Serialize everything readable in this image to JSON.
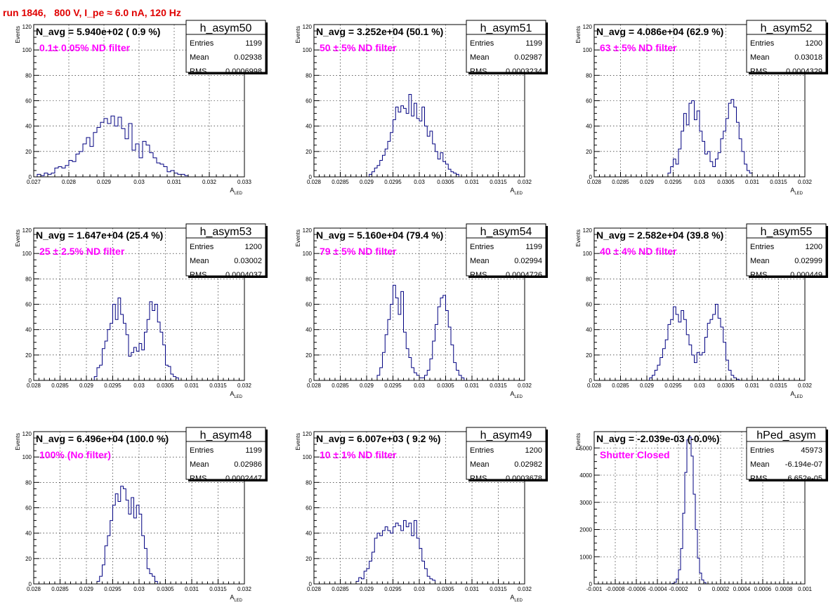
{
  "title": "run 1846,   800 V, I_pe ≈ 6.0 nA, 120 Hz",
  "colors": {
    "title": "#e00000",
    "annotation": "#ff00ff",
    "histogram": "#000080",
    "grid": "#000000"
  },
  "chart_data": [
    {
      "type": "histogram",
      "name": "h_asym50",
      "navg_label": "N_avg = 5.940e+02 ( 0.9 %)",
      "annotation": "0.1± 0.05% ND filter",
      "stats": {
        "Entries": "1199",
        "Mean": "0.02938",
        "RMS": "0.0006998"
      },
      "ylabel": "Events",
      "xlabel": "A_LED",
      "xlim": [
        0.027,
        0.033
      ],
      "ylim": [
        0,
        120
      ],
      "xticks": [
        0.027,
        0.028,
        0.029,
        0.03,
        0.031,
        0.032,
        0.033
      ],
      "xtick_labels": [
        "0.027",
        "0.028",
        "0.029",
        "0.03",
        "0.031",
        "0.032",
        "0.033"
      ],
      "yticks": [
        0,
        20,
        40,
        60,
        80,
        100,
        120
      ],
      "bin_start": 0.0271,
      "bin_width": 0.0001,
      "counts": [
        2,
        1,
        3,
        2,
        3,
        7,
        8,
        7,
        9,
        13,
        12,
        18,
        20,
        26,
        31,
        24,
        35,
        39,
        43,
        46,
        42,
        48,
        40,
        47,
        38,
        30,
        42,
        21,
        26,
        15,
        28,
        25,
        19,
        15,
        11,
        10,
        8,
        4,
        5,
        3,
        2,
        2,
        1
      ]
    },
    {
      "type": "histogram",
      "name": "h_asym51",
      "navg_label": "N_avg = 3.252e+04 (50.1 %)",
      "annotation": "50 ± 5% ND filter",
      "stats": {
        "Entries": "1199",
        "Mean": "0.02987",
        "RMS": "0.0003234"
      },
      "ylabel": "Events",
      "xlabel": "A_LED",
      "xlim": [
        0.028,
        0.032
      ],
      "ylim": [
        0,
        120
      ],
      "xticks": [
        0.028,
        0.0285,
        0.029,
        0.0295,
        0.03,
        0.0305,
        0.031,
        0.0315,
        0.032
      ],
      "xtick_labels": [
        "0.028",
        "0.0285",
        "0.029",
        "0.0295",
        "0.03",
        "0.0305",
        "0.031",
        "0.0315",
        "0.032"
      ],
      "yticks": [
        0,
        20,
        40,
        60,
        80,
        100,
        120
      ],
      "bin_start": 0.02905,
      "bin_width": 5e-05,
      "counts": [
        2,
        4,
        7,
        9,
        13,
        17,
        22,
        28,
        35,
        45,
        55,
        51,
        56,
        54,
        50,
        65,
        48,
        58,
        46,
        44,
        55,
        40,
        32,
        36,
        26,
        20,
        14,
        19,
        12,
        10,
        6,
        4,
        3,
        2
      ]
    },
    {
      "type": "histogram",
      "name": "h_asym52",
      "navg_label": "N_avg = 4.086e+04 (62.9 %)",
      "annotation": "63 ± 5% ND filter",
      "stats": {
        "Entries": "1200",
        "Mean": "0.03018",
        "RMS": "0.0004329"
      },
      "ylabel": "Events",
      "xlabel": "A_LED",
      "xlim": [
        0.028,
        0.032
      ],
      "ylim": [
        0,
        120
      ],
      "xticks": [
        0.028,
        0.0285,
        0.029,
        0.0295,
        0.03,
        0.0305,
        0.031,
        0.0315,
        0.032
      ],
      "xtick_labels": [
        "0.028",
        "0.0285",
        "0.029",
        "0.0295",
        "0.03",
        "0.0305",
        "0.031",
        "0.0315",
        "0.032"
      ],
      "yticks": [
        0,
        20,
        40,
        60,
        80,
        100,
        120
      ],
      "bin_start": 0.0294,
      "bin_width": 5e-05,
      "counts": [
        3,
        8,
        14,
        10,
        22,
        36,
        50,
        41,
        58,
        60,
        45,
        52,
        36,
        28,
        18,
        20,
        12,
        8,
        14,
        19,
        30,
        36,
        46,
        58,
        61,
        55,
        43,
        30,
        20,
        10,
        5,
        3
      ]
    },
    {
      "type": "histogram",
      "name": "h_asym53",
      "navg_label": "N_avg = 1.647e+04 (25.4 %)",
      "annotation": "25 ± 2.5% ND filter",
      "stats": {
        "Entries": "1200",
        "Mean": "0.03002",
        "RMS": "0.0004037"
      },
      "ylabel": "Events",
      "xlabel": "A_LED",
      "xlim": [
        0.028,
        0.032
      ],
      "ylim": [
        0,
        120
      ],
      "xticks": [
        0.028,
        0.0285,
        0.029,
        0.0295,
        0.03,
        0.0305,
        0.031,
        0.0315,
        0.032
      ],
      "xtick_labels": [
        "0.028",
        "0.0285",
        "0.029",
        "0.0295",
        "0.03",
        "0.0305",
        "0.031",
        "0.0315",
        "0.032"
      ],
      "yticks": [
        0,
        20,
        40,
        60,
        80,
        100,
        120
      ],
      "bin_start": 0.02915,
      "bin_width": 5e-05,
      "counts": [
        3,
        10,
        12,
        25,
        31,
        40,
        45,
        60,
        48,
        65,
        52,
        45,
        36,
        19,
        22,
        26,
        23,
        29,
        24,
        38,
        48,
        62,
        55,
        60,
        46,
        38,
        28,
        12,
        11,
        5,
        3,
        2
      ]
    },
    {
      "type": "histogram",
      "name": "h_asym54",
      "navg_label": "N_avg = 5.160e+04 (79.4 %)",
      "annotation": "79 ± 5% ND filter",
      "stats": {
        "Entries": "1199",
        "Mean": "0.02994",
        "RMS": "0.0004726"
      },
      "ylabel": "Events",
      "xlabel": "A_LED",
      "xlim": [
        0.028,
        0.032
      ],
      "ylim": [
        0,
        120
      ],
      "xticks": [
        0.028,
        0.0285,
        0.029,
        0.0295,
        0.03,
        0.0305,
        0.031,
        0.0315,
        0.032
      ],
      "xtick_labels": [
        "0.028",
        "0.0285",
        "0.029",
        "0.0295",
        "0.03",
        "0.0305",
        "0.031",
        "0.0315",
        "0.032"
      ],
      "yticks": [
        0,
        20,
        40,
        60,
        80,
        100,
        120
      ],
      "bin_start": 0.0292,
      "bin_width": 5e-05,
      "counts": [
        4,
        10,
        22,
        36,
        48,
        60,
        75,
        65,
        52,
        70,
        38,
        25,
        18,
        10,
        6,
        4,
        2,
        2,
        4,
        8,
        17,
        31,
        44,
        58,
        65,
        67,
        55,
        42,
        28,
        14,
        8,
        4,
        2
      ]
    },
    {
      "type": "histogram",
      "name": "h_asym55",
      "navg_label": "N_avg = 2.582e+04 (39.8 %)",
      "annotation": "40 ± 4% ND filter",
      "stats": {
        "Entries": "1200",
        "Mean": "0.02999",
        "RMS": "0.000449"
      },
      "ylabel": "Events",
      "xlabel": "A_LED",
      "xlim": [
        0.028,
        0.032
      ],
      "ylim": [
        0,
        120
      ],
      "xticks": [
        0.028,
        0.0285,
        0.029,
        0.0295,
        0.03,
        0.0305,
        0.031,
        0.0315,
        0.032
      ],
      "xtick_labels": [
        "0.028",
        "0.0285",
        "0.029",
        "0.0295",
        "0.03",
        "0.0305",
        "0.031",
        "0.0315",
        "0.032"
      ],
      "yticks": [
        0,
        20,
        40,
        60,
        80,
        100,
        120
      ],
      "bin_start": 0.02905,
      "bin_width": 5e-05,
      "counts": [
        2,
        4,
        8,
        12,
        18,
        25,
        32,
        44,
        48,
        58,
        52,
        46,
        55,
        48,
        36,
        28,
        20,
        14,
        22,
        20,
        22,
        34,
        45,
        48,
        52,
        60,
        49,
        42,
        30,
        16,
        8,
        4,
        2,
        1
      ]
    },
    {
      "type": "histogram",
      "name": "h_asym48",
      "navg_label": "N_avg = 6.496e+04 (100.0 %)",
      "annotation": "100% (No filter)",
      "stats": {
        "Entries": "1199",
        "Mean": "0.02986",
        "RMS": "0.0002447"
      },
      "ylabel": "Events",
      "xlabel": "A_LED",
      "xlim": [
        0.028,
        0.032
      ],
      "ylim": [
        0,
        120
      ],
      "xticks": [
        0.028,
        0.0285,
        0.029,
        0.0295,
        0.03,
        0.0305,
        0.031,
        0.0315,
        0.032
      ],
      "xtick_labels": [
        "0.028",
        "0.0285",
        "0.029",
        "0.0295",
        "0.03",
        "0.0305",
        "0.031",
        "0.0315",
        "0.032"
      ],
      "yticks": [
        0,
        20,
        40,
        60,
        80,
        100,
        120
      ],
      "bin_start": 0.0292,
      "bin_width": 5e-05,
      "counts": [
        2,
        6,
        15,
        30,
        38,
        50,
        62,
        71,
        65,
        77,
        75,
        66,
        55,
        68,
        52,
        62,
        55,
        38,
        28,
        12,
        8,
        6,
        2
      ]
    },
    {
      "type": "histogram",
      "name": "h_asym49",
      "navg_label": "N_avg = 6.007e+03 ( 9.2 %)",
      "annotation": "10 ± 1% ND filter",
      "stats": {
        "Entries": "1200",
        "Mean": "0.02982",
        "RMS": "0.0003678"
      },
      "ylabel": "Events",
      "xlabel": "A_LED",
      "xlim": [
        0.028,
        0.032
      ],
      "ylim": [
        0,
        120
      ],
      "xticks": [
        0.028,
        0.0285,
        0.029,
        0.0295,
        0.03,
        0.0305,
        0.031,
        0.0315,
        0.032
      ],
      "xtick_labels": [
        "0.028",
        "0.0285",
        "0.029",
        "0.0295",
        "0.03",
        "0.0305",
        "0.031",
        "0.0315",
        "0.032"
      ],
      "yticks": [
        0,
        20,
        40,
        60,
        80,
        100,
        120
      ],
      "bin_start": 0.0288,
      "bin_width": 5e-05,
      "counts": [
        2,
        5,
        4,
        10,
        12,
        18,
        25,
        36,
        40,
        38,
        42,
        45,
        42,
        40,
        45,
        48,
        46,
        42,
        50,
        45,
        48,
        38,
        50,
        36,
        28,
        18,
        12,
        6,
        4,
        3
      ]
    },
    {
      "type": "histogram",
      "name": "hPed_asym",
      "navg_label": "N_avg = -2.039e-03 (-0.0%)",
      "annotation": "Shutter Closed",
      "stats": {
        "Entries": "45973",
        "Mean": "-6.194e-07",
        "RMS": "6.652e-05"
      },
      "ylabel": "Events",
      "xlabel": "",
      "xlim": [
        -0.001,
        0.001
      ],
      "ylim": [
        0,
        5600
      ],
      "xticks": [
        -0.001,
        -0.0008,
        -0.0006,
        -0.0004,
        -0.0002,
        0,
        0.0002,
        0.0004,
        0.0006,
        0.0008,
        0.001
      ],
      "xtick_labels": [
        "-0.001",
        "-0.0008",
        "-0.0006",
        "-0.0004",
        "-0.0002",
        "0",
        "0.0002",
        "0.0004",
        "0.0006",
        "0.0008",
        "0.001"
      ],
      "yticks": [
        0,
        1000,
        2000,
        3000,
        4000,
        5000
      ],
      "bin_start": -0.00026,
      "bin_width": 2e-05,
      "counts": [
        20,
        60,
        180,
        520,
        1300,
        2600,
        4100,
        5300,
        5400,
        4700,
        3300,
        2000,
        950,
        400,
        150,
        50
      ]
    }
  ]
}
